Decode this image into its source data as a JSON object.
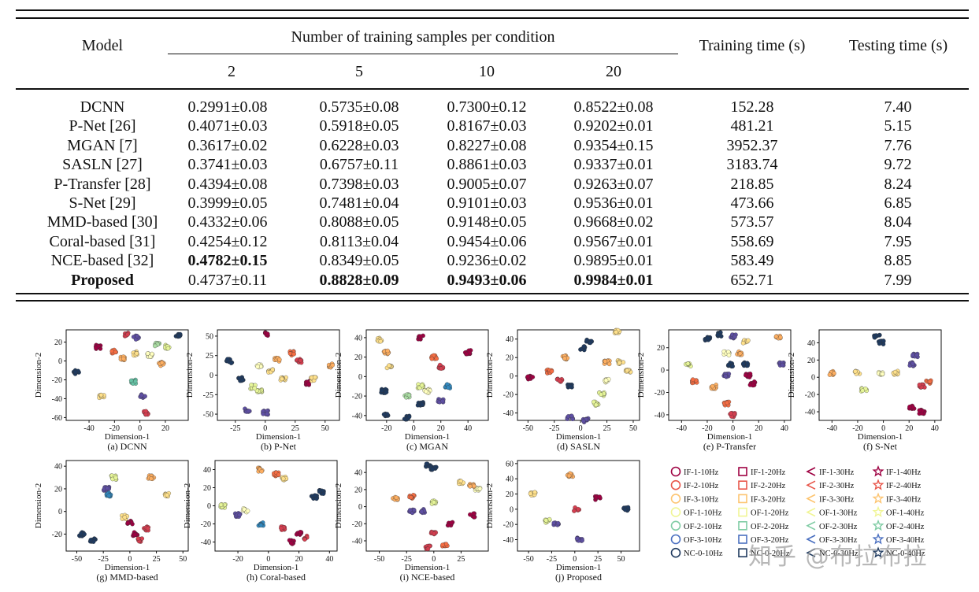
{
  "table": {
    "header": {
      "model": "Model",
      "group": "Number of training samples per condition",
      "sub": [
        "2",
        "5",
        "10",
        "20"
      ],
      "train": "Training time (s)",
      "test": "Testing time (s)"
    },
    "rows": [
      {
        "model": "DCNN",
        "v": [
          "0.2991±0.08",
          "0.5735±0.08",
          "0.7300±0.12",
          "0.8522±0.08"
        ],
        "train": "152.28",
        "test": "7.40",
        "bold": []
      },
      {
        "model": "P-Net [26]",
        "v": [
          "0.4071±0.03",
          "0.5918±0.05",
          "0.8167±0.03",
          "0.9202±0.01"
        ],
        "train": "481.21",
        "test": "5.15",
        "bold": []
      },
      {
        "model": "MGAN [7]",
        "v": [
          "0.3617±0.02",
          "0.6228±0.03",
          "0.8227±0.08",
          "0.9354±0.15"
        ],
        "train": "3952.37",
        "test": "7.76",
        "bold": []
      },
      {
        "model": "SASLN [27]",
        "v": [
          "0.3741±0.03",
          "0.6757±0.11",
          "0.8861±0.03",
          "0.9337±0.01"
        ],
        "train": "3183.74",
        "test": "9.72",
        "bold": []
      },
      {
        "model": "P-Transfer [28]",
        "v": [
          "0.4394±0.08",
          "0.7398±0.03",
          "0.9005±0.07",
          "0.9263±0.07"
        ],
        "train": "218.85",
        "test": "8.24",
        "bold": []
      },
      {
        "model": "S-Net [29]",
        "v": [
          "0.3999±0.05",
          "0.7481±0.04",
          "0.9101±0.03",
          "0.9536±0.01"
        ],
        "train": "473.66",
        "test": "6.85",
        "bold": []
      },
      {
        "model": "MMD-based [30]",
        "v": [
          "0.4332±0.06",
          "0.8088±0.05",
          "0.9148±0.05",
          "0.9668±0.02"
        ],
        "train": "573.57",
        "test": "8.04",
        "bold": []
      },
      {
        "model": "Coral-based [31]",
        "v": [
          "0.4254±0.12",
          "0.8113±0.04",
          "0.9454±0.06",
          "0.9567±0.01"
        ],
        "train": "558.69",
        "test": "7.95",
        "bold": []
      },
      {
        "model": "NCE-based [32]",
        "v": [
          "0.4782±0.15",
          "0.8349±0.05",
          "0.9236±0.02",
          "0.9895±0.01"
        ],
        "train": "583.49",
        "test": "8.85",
        "bold": [
          0
        ]
      },
      {
        "model": "Proposed",
        "v": [
          "0.4737±0.11",
          "0.8828±0.09",
          "0.9493±0.06",
          "0.9984±0.01"
        ],
        "train": "652.71",
        "test": "7.99",
        "bold": [
          1,
          2,
          3
        ],
        "boldModel": true
      }
    ]
  },
  "chart_data": [
    {
      "type": "scatter",
      "caption": "(a) DCNN",
      "xlabel": "Dimension-1",
      "ylabel": "Dimension-2",
      "xticks": [
        -40,
        -20,
        0,
        20
      ],
      "yticks": [
        -60,
        -40,
        -20,
        0,
        20
      ],
      "xlim": [
        -58,
        38
      ],
      "ylim": [
        -63,
        33
      ],
      "clusters": [
        [
          -10,
          28,
          1
        ],
        [
          -33,
          15,
          0
        ],
        [
          -20,
          10,
          2
        ],
        [
          -14,
          3,
          3
        ],
        [
          -3,
          8,
          4
        ],
        [
          8,
          6,
          5
        ],
        [
          14,
          17,
          7
        ],
        [
          22,
          15,
          6
        ],
        [
          30,
          28,
          11
        ],
        [
          -3,
          25,
          10
        ],
        [
          -50,
          -12,
          11
        ],
        [
          -30,
          -38,
          4
        ],
        [
          -5,
          -22,
          8
        ],
        [
          2,
          -37,
          10
        ],
        [
          5,
          -55,
          1
        ],
        [
          17,
          -3,
          3
        ]
      ]
    },
    {
      "type": "scatter",
      "caption": "(b) P-Net",
      "xlabel": "Dimension-1",
      "ylabel": "Dimension-2",
      "xticks": [
        -25,
        0,
        25,
        50
      ],
      "yticks": [
        -50,
        -25,
        0,
        25,
        50
      ],
      "xlim": [
        -40,
        62
      ],
      "ylim": [
        -58,
        58
      ],
      "clusters": [
        [
          -30,
          18,
          11
        ],
        [
          -20,
          -5,
          11
        ],
        [
          2,
          53,
          0
        ],
        [
          -5,
          12,
          5
        ],
        [
          5,
          5,
          4
        ],
        [
          -5,
          -20,
          6
        ],
        [
          -10,
          -15,
          6
        ],
        [
          23,
          28,
          2
        ],
        [
          28,
          18,
          1
        ],
        [
          35,
          -10,
          0
        ],
        [
          15,
          -5,
          4
        ],
        [
          10,
          20,
          3
        ],
        [
          -15,
          -45,
          10
        ],
        [
          0,
          -48,
          10
        ],
        [
          55,
          12,
          3
        ],
        [
          40,
          -5,
          4
        ]
      ]
    },
    {
      "type": "scatter",
      "caption": "(c) MGAN",
      "xlabel": "Dimension-1",
      "ylabel": "Dimension-2",
      "xticks": [
        -20,
        0,
        20,
        40
      ],
      "yticks": [
        -40,
        -20,
        0,
        20,
        40
      ],
      "xlim": [
        -35,
        55
      ],
      "ylim": [
        -45,
        48
      ],
      "clusters": [
        [
          -25,
          38,
          4
        ],
        [
          -20,
          25,
          3
        ],
        [
          -18,
          10,
          4
        ],
        [
          -22,
          -15,
          11
        ],
        [
          -20,
          -40,
          11
        ],
        [
          -5,
          -42,
          11
        ],
        [
          5,
          40,
          0
        ],
        [
          15,
          20,
          2
        ],
        [
          20,
          10,
          1
        ],
        [
          40,
          25,
          0
        ],
        [
          10,
          -15,
          5
        ],
        [
          5,
          -10,
          6
        ],
        [
          25,
          -10,
          9
        ],
        [
          20,
          -25,
          10
        ],
        [
          5,
          -28,
          11
        ],
        [
          -5,
          -20,
          7
        ]
      ]
    },
    {
      "type": "scatter",
      "caption": "(d) SASLN",
      "xlabel": "Dimension-1",
      "ylabel": "Dimension-2",
      "xticks": [
        -50,
        -25,
        0,
        25,
        50
      ],
      "yticks": [
        -40,
        -20,
        0,
        20,
        40
      ],
      "xlim": [
        -60,
        56
      ],
      "ylim": [
        -48,
        50
      ],
      "clusters": [
        [
          -48,
          -2,
          0
        ],
        [
          -30,
          5,
          2
        ],
        [
          -20,
          -5,
          1
        ],
        [
          -15,
          20,
          3
        ],
        [
          2,
          30,
          11
        ],
        [
          8,
          38,
          11
        ],
        [
          35,
          48,
          4
        ],
        [
          38,
          15,
          4
        ],
        [
          25,
          15,
          3
        ],
        [
          -10,
          -45,
          10
        ],
        [
          5,
          -48,
          10
        ],
        [
          15,
          -30,
          6
        ],
        [
          20,
          -20,
          6
        ],
        [
          25,
          -5,
          5
        ],
        [
          -10,
          -10,
          11
        ],
        [
          45,
          5,
          4
        ]
      ]
    },
    {
      "type": "scatter",
      "caption": "(e) P-Transfer",
      "xlabel": "Dimension-1",
      "ylabel": "Dimension-2",
      "xticks": [
        -40,
        -20,
        0,
        20,
        40
      ],
      "yticks": [
        -40,
        -20,
        0,
        20
      ],
      "xlim": [
        -50,
        45
      ],
      "ylim": [
        -45,
        36
      ],
      "clusters": [
        [
          -35,
          5,
          6
        ],
        [
          -20,
          28,
          11
        ],
        [
          -10,
          32,
          11
        ],
        [
          0,
          30,
          10
        ],
        [
          10,
          25,
          4
        ],
        [
          -5,
          15,
          5
        ],
        [
          5,
          15,
          3
        ],
        [
          10,
          5,
          11
        ],
        [
          -2,
          5,
          11
        ],
        [
          -5,
          -5,
          10
        ],
        [
          12,
          -5,
          0
        ],
        [
          15,
          -12,
          0
        ],
        [
          -30,
          -10,
          2
        ],
        [
          -15,
          -15,
          3
        ],
        [
          0,
          -40,
          1
        ],
        [
          -5,
          -30,
          2
        ],
        [
          35,
          30,
          3
        ],
        [
          38,
          5,
          10
        ]
      ]
    },
    {
      "type": "scatter",
      "caption": "(f) S-Net",
      "xlabel": "Dimension-1",
      "ylabel": "Dimension-2",
      "xticks": [
        -40,
        -20,
        0,
        20,
        40
      ],
      "yticks": [
        -40,
        -20,
        0,
        20,
        40
      ],
      "xlim": [
        -50,
        45
      ],
      "ylim": [
        -50,
        55
      ],
      "clusters": [
        [
          -40,
          5,
          3
        ],
        [
          -20,
          5,
          4
        ],
        [
          -2,
          5,
          5
        ],
        [
          10,
          5,
          4
        ],
        [
          -15,
          -15,
          6
        ],
        [
          -5,
          48,
          11
        ],
        [
          -2,
          40,
          11
        ],
        [
          25,
          25,
          10
        ],
        [
          22,
          15,
          10
        ],
        [
          30,
          -10,
          1
        ],
        [
          35,
          -5,
          2
        ],
        [
          22,
          -35,
          0
        ],
        [
          30,
          -40,
          0
        ]
      ]
    },
    {
      "type": "scatter",
      "caption": "(g) MMD-based",
      "xlabel": "Dimension-1",
      "ylabel": "Dimension-2",
      "xticks": [
        -50,
        -25,
        0,
        25,
        50
      ],
      "yticks": [
        -20,
        0,
        20,
        40
      ],
      "xlim": [
        -60,
        55
      ],
      "ylim": [
        -35,
        45
      ],
      "clusters": [
        [
          -15,
          30,
          6
        ],
        [
          -22,
          20,
          10
        ],
        [
          -20,
          15,
          9
        ],
        [
          20,
          30,
          3
        ],
        [
          35,
          15,
          4
        ],
        [
          -45,
          -20,
          11
        ],
        [
          -35,
          -25,
          11
        ],
        [
          0,
          -10,
          0
        ],
        [
          5,
          -20,
          0
        ],
        [
          10,
          -25,
          1
        ],
        [
          15,
          -15,
          1
        ],
        [
          -5,
          -5,
          4
        ]
      ]
    },
    {
      "type": "scatter",
      "caption": "(h) Coral-based",
      "xlabel": "Dimension-1",
      "ylabel": "Dimension-2",
      "xticks": [
        -20,
        0,
        20,
        40
      ],
      "yticks": [
        -40,
        -20,
        0,
        20,
        40
      ],
      "xlim": [
        -35,
        45
      ],
      "ylim": [
        -50,
        50
      ],
      "clusters": [
        [
          -5,
          40,
          3
        ],
        [
          5,
          35,
          2
        ],
        [
          10,
          30,
          4
        ],
        [
          -30,
          0,
          6
        ],
        [
          -20,
          -10,
          10
        ],
        [
          -5,
          -20,
          9
        ],
        [
          10,
          -25,
          1
        ],
        [
          20,
          -30,
          0
        ],
        [
          25,
          -35,
          1
        ],
        [
          15,
          -40,
          0
        ],
        [
          35,
          15,
          11
        ],
        [
          30,
          10,
          11
        ],
        [
          -15,
          -5,
          5
        ]
      ]
    },
    {
      "type": "scatter",
      "caption": "(i) NCE-based",
      "xlabel": "Dimension-1",
      "ylabel": "Dimension-2",
      "xticks": [
        -50,
        -25,
        0,
        25
      ],
      "yticks": [
        -40,
        -20,
        0,
        20,
        40
      ],
      "xlim": [
        -62,
        50
      ],
      "ylim": [
        -52,
        54
      ],
      "clusters": [
        [
          -5,
          48,
          11
        ],
        [
          0,
          45,
          11
        ],
        [
          -35,
          10,
          3
        ],
        [
          -20,
          12,
          2
        ],
        [
          25,
          28,
          4
        ],
        [
          40,
          20,
          5
        ],
        [
          35,
          25,
          3
        ],
        [
          0,
          5,
          6
        ],
        [
          -10,
          -5,
          10
        ],
        [
          -20,
          -5,
          10
        ],
        [
          15,
          -20,
          0
        ],
        [
          35,
          -10,
          0
        ],
        [
          0,
          -30,
          1
        ],
        [
          -5,
          -48,
          1
        ],
        [
          10,
          -45,
          2
        ]
      ]
    },
    {
      "type": "scatter",
      "caption": "(j) Proposed",
      "xlabel": "Dimension-1",
      "ylabel": "Dimension-2",
      "xticks": [
        -50,
        -25,
        0,
        25,
        50
      ],
      "yticks": [
        -40,
        -20,
        0,
        20,
        40,
        60
      ],
      "xlim": [
        -62,
        70
      ],
      "ylim": [
        -55,
        64
      ],
      "clusters": [
        [
          -5,
          45,
          3
        ],
        [
          -45,
          20,
          4
        ],
        [
          -30,
          -15,
          6
        ],
        [
          -20,
          -20,
          10
        ],
        [
          2,
          0,
          1
        ],
        [
          25,
          15,
          0
        ],
        [
          55,
          0,
          11
        ],
        [
          5,
          -40,
          10
        ]
      ]
    }
  ],
  "legend": {
    "colors": [
      "#9e0142",
      "#d53e4f",
      "#f46d43",
      "#fdae61",
      "#fee08b",
      "#ffffbf",
      "#e6f598",
      "#abdda4",
      "#66c2a5",
      "#3288bd",
      "#5e4fa2",
      "#1f3a5f"
    ],
    "columns": [
      {
        "marker": "circle",
        "labels": [
          "IF-1-10Hz",
          "IF-2-10Hz",
          "IF-3-10Hz",
          "OF-1-10Hz",
          "OF-2-10Hz",
          "OF-3-10Hz",
          "NC-0-10Hz"
        ],
        "colors": [
          "#9e0142",
          "#e8564a",
          "#fdc470",
          "#f0f595",
          "#7fcca4",
          "#4a6fc0",
          "#1f3a5f"
        ]
      },
      {
        "marker": "square",
        "labels": [
          "IF-1-20Hz",
          "IF-2-20Hz",
          "IF-3-20Hz",
          "OF-1-20Hz",
          "OF-2-20Hz",
          "OF-3-20Hz",
          "NC-0-20Hz"
        ],
        "colors": [
          "#9e0142",
          "#e8564a",
          "#fdc470",
          "#f0f595",
          "#7fcca4",
          "#4a6fc0",
          "#1f3a5f"
        ]
      },
      {
        "marker": "triangle",
        "labels": [
          "IF-1-30Hz",
          "IF-2-30Hz",
          "IF-3-30Hz",
          "OF-1-30Hz",
          "OF-2-30Hz",
          "OF-3-30Hz",
          "NC-0-30Hz"
        ],
        "colors": [
          "#9e0142",
          "#e8564a",
          "#fdc470",
          "#f0f595",
          "#7fcca4",
          "#4a6fc0",
          "#1f3a5f"
        ]
      },
      {
        "marker": "star",
        "labels": [
          "IF-1-40Hz",
          "IF-2-40Hz",
          "IF-3-40Hz",
          "OF-1-40Hz",
          "OF-2-40Hz",
          "OF-3-40Hz",
          "NC-0-40Hz"
        ],
        "colors": [
          "#9e0142",
          "#e8564a",
          "#fdc470",
          "#f0f595",
          "#7fcca4",
          "#4a6fc0",
          "#1f3a5f"
        ]
      }
    ]
  },
  "watermark": "知乎 @布拉布拉"
}
